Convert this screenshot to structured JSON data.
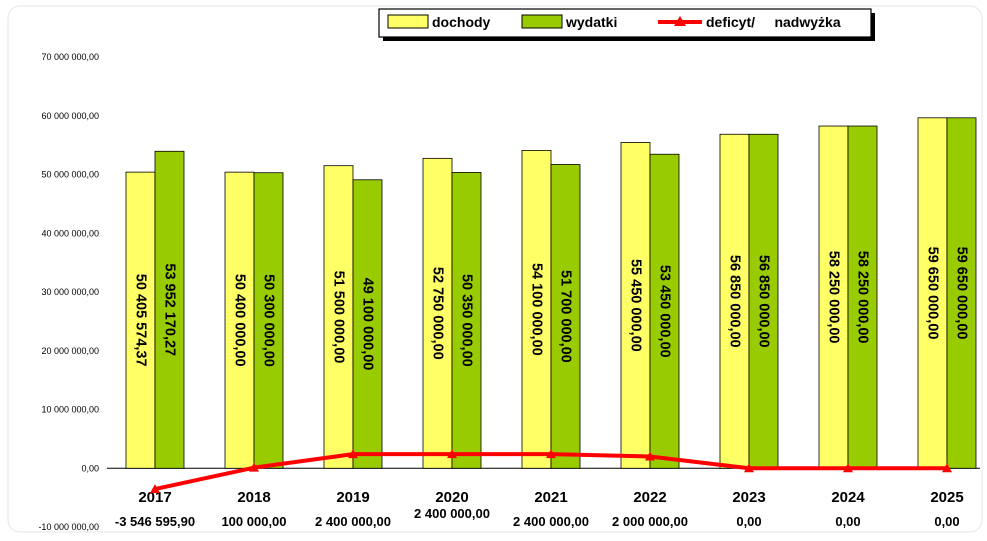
{
  "chart_data": {
    "type": "bar",
    "categories": [
      "2017",
      "2018",
      "2019",
      "2020",
      "2021",
      "2022",
      "2023",
      "2024",
      "2025"
    ],
    "series": [
      {
        "name": "dochody",
        "color": "#ffff66",
        "values": [
          50405574.37,
          50400000,
          51500000,
          52750000,
          54100000,
          55450000,
          56850000,
          58250000,
          59650000
        ],
        "labels": [
          "50 405 574,37",
          "50 400 000,00",
          "51 500 000,00",
          "52 750 000,00",
          "54 100 000,00",
          "55 450 000,00",
          "56 850 000,00",
          "58 250 000,00",
          "59 650 000,00"
        ]
      },
      {
        "name": "wydatki",
        "color": "#99cc00",
        "values": [
          53952170.27,
          50300000,
          49100000,
          50350000,
          51700000,
          53450000,
          56850000,
          58250000,
          59650000
        ],
        "labels": [
          "53 952 170,27",
          "50 300 000,00",
          "49 100 000,00",
          "50 350 000,00",
          "51 700 000,00",
          "53 450 000,00",
          "56 850 000,00",
          "58 250 000,00",
          "59 650 000,00"
        ]
      },
      {
        "name": "deficyt/     nadwyżka",
        "type": "line",
        "color": "#ff0000",
        "values": [
          -3546595.9,
          100000,
          2400000,
          2400000,
          2400000,
          2000000,
          0,
          0,
          0
        ],
        "labels": [
          "-3 546 595,90",
          "100 000,00",
          "2 400 000,00",
          "2 400 000,00",
          "2 400 000,00",
          "2 000 000,00",
          "0,00",
          "0,00",
          "0,00"
        ]
      }
    ],
    "ylim": [
      -10000000,
      70000000
    ],
    "yticks": [
      -10000000,
      0,
      10000000,
      20000000,
      30000000,
      40000000,
      50000000,
      60000000,
      70000000
    ],
    "ytick_labels": [
      "-10 000 000,00",
      "0,00",
      "10 000 000,00",
      "20 000 000,00",
      "30 000 000,00",
      "40 000 000,00",
      "50 000 000,00",
      "60 000 000,00",
      "70 000 000,00"
    ],
    "legend_position": "top-center",
    "grid": false
  }
}
